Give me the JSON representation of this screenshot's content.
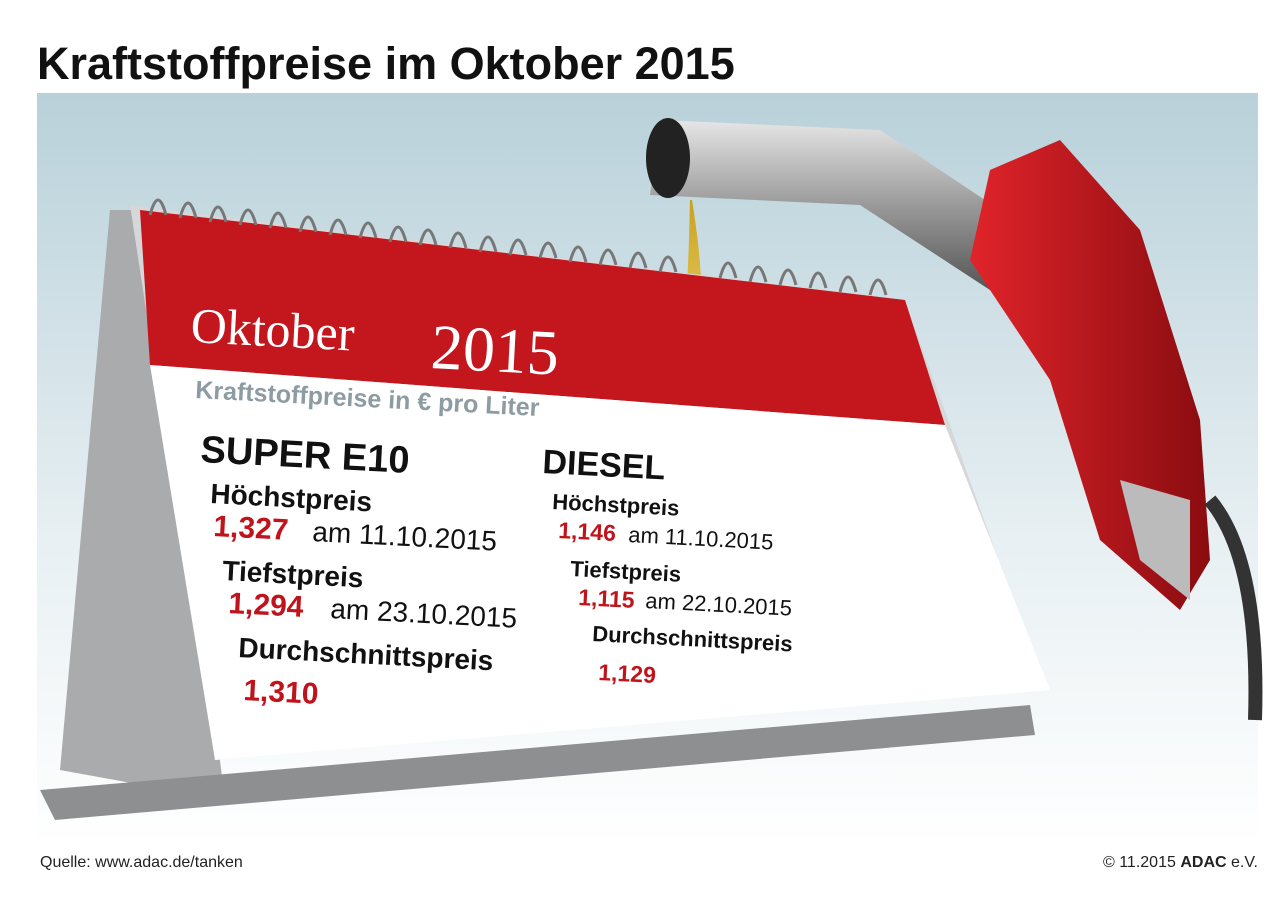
{
  "title": "Kraftstoffpreise im Oktober 2015",
  "calendar": {
    "month": "Oktober",
    "year": "2015",
    "subtitle": "Kraftstoffpreise in € pro Liter"
  },
  "fuels": [
    {
      "name": "SUPER E10",
      "items": [
        {
          "label": "Höchstpreis",
          "price": "1,327",
          "date": "am 11.10.2015"
        },
        {
          "label": "Tiefstpreis",
          "price": "1,294",
          "date": "am 23.10.2015"
        },
        {
          "label": "Durchschnittspreis",
          "price": "1,310"
        }
      ]
    },
    {
      "name": "DIESEL",
      "items": [
        {
          "label": "Höchstpreis",
          "price": "1,146",
          "date": "am 11.10.2015"
        },
        {
          "label": "Tiefstpreis",
          "price": "1,115",
          "date": "am 22.10.2015"
        },
        {
          "label": "Durchschnittspreis",
          "price": "1,129"
        }
      ]
    }
  ],
  "footer": {
    "source": "Quelle: www.adac.de/tanken",
    "copyright": "© 11.2015",
    "brand": "ADAC",
    "suffix": "e.V."
  }
}
